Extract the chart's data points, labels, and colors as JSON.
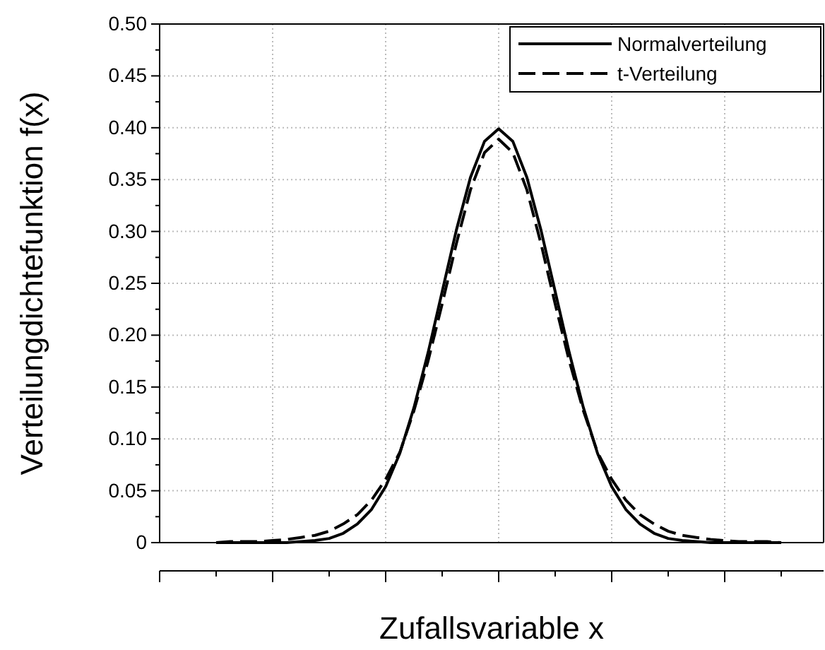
{
  "chart_data": {
    "type": "line",
    "xlabel": "Zufallsvariable x",
    "ylabel": "Verteilungdichtefunktion f(x)",
    "categories": [
      null,
      null,
      null,
      null,
      null,
      null,
      null,
      null,
      null,
      null,
      null,
      null,
      null,
      null,
      null,
      null,
      null,
      null,
      null,
      null,
      null,
      null,
      null,
      null,
      null,
      null,
      null,
      null,
      null,
      null,
      null,
      null,
      null,
      null,
      null,
      null,
      null,
      null,
      null,
      null,
      null
    ],
    "series": [
      {
        "name": "Normalverteilung",
        "color": "#000000",
        "line_style": "solid",
        "values": [
          0,
          0,
          0,
          0,
          0,
          0,
          0.001,
          0.002,
          0.004,
          0.009,
          0.018,
          0.032,
          0.054,
          0.086,
          0.13,
          0.183,
          0.242,
          0.301,
          0.352,
          0.387,
          0.399,
          0.387,
          0.352,
          0.301,
          0.242,
          0.183,
          0.13,
          0.086,
          0.054,
          0.032,
          0.018,
          0.009,
          0.004,
          0.002,
          0.001,
          0,
          0,
          0,
          0,
          0,
          0
        ]
      },
      {
        "name": "t-Verteilung",
        "color": "#000000",
        "line_style": "dashed",
        "values": [
          0,
          0.001,
          0.001,
          0.001,
          0.002,
          0.003,
          0.005,
          0.007,
          0.011,
          0.018,
          0.027,
          0.041,
          0.061,
          0.087,
          0.127,
          0.175,
          0.23,
          0.288,
          0.34,
          0.376,
          0.389,
          0.376,
          0.34,
          0.288,
          0.23,
          0.175,
          0.127,
          0.087,
          0.061,
          0.041,
          0.027,
          0.018,
          0.011,
          0.007,
          0.005,
          0.003,
          0.002,
          0.001,
          0.001,
          0.001,
          0
        ]
      }
    ],
    "ylim": [
      0,
      0.5
    ],
    "yticks": [
      {
        "value": 0,
        "label": "0"
      },
      {
        "value": 0.05,
        "label": "0.05"
      },
      {
        "value": 0.1,
        "label": "0.10"
      },
      {
        "value": 0.15,
        "label": "0.15"
      },
      {
        "value": 0.2,
        "label": "0.20"
      },
      {
        "value": 0.25,
        "label": "0.25"
      },
      {
        "value": 0.3,
        "label": "0.30"
      },
      {
        "value": 0.35,
        "label": "0.35"
      },
      {
        "value": 0.4,
        "label": "0.40"
      },
      {
        "value": 0.45,
        "label": "0.45"
      },
      {
        "value": 0.5,
        "label": "0.50"
      }
    ],
    "grid": true,
    "legend": "top right",
    "tick_labels": "y"
  }
}
